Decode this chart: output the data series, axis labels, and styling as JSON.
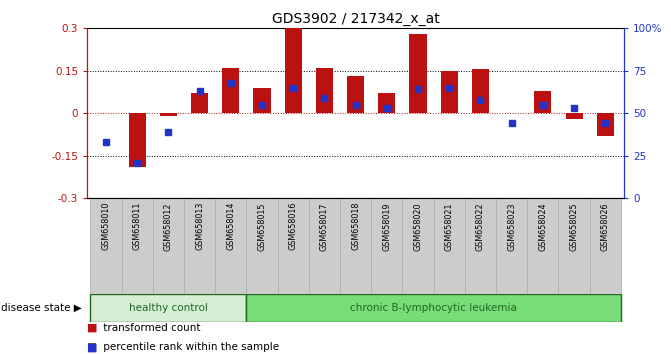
{
  "title": "GDS3902 / 217342_x_at",
  "samples": [
    "GSM658010",
    "GSM658011",
    "GSM658012",
    "GSM658013",
    "GSM658014",
    "GSM658015",
    "GSM658016",
    "GSM658017",
    "GSM658018",
    "GSM658019",
    "GSM658020",
    "GSM658021",
    "GSM658022",
    "GSM658023",
    "GSM658024",
    "GSM658025",
    "GSM658026"
  ],
  "bar_values": [
    0.0,
    -0.19,
    -0.01,
    0.07,
    0.16,
    0.09,
    0.3,
    0.16,
    0.13,
    0.07,
    0.28,
    0.15,
    0.155,
    0.0,
    0.08,
    -0.02,
    -0.08
  ],
  "dot_percentiles": [
    33,
    21,
    39,
    63,
    68,
    55,
    65,
    59,
    55,
    53,
    64,
    65,
    58,
    44,
    55,
    53,
    44
  ],
  "bar_color": "#bb1111",
  "dot_color": "#2233cc",
  "ylim_left": [
    -0.3,
    0.3
  ],
  "ylim_right": [
    0,
    100
  ],
  "yticks_left": [
    -0.3,
    -0.15,
    0.0,
    0.15,
    0.3
  ],
  "ytick_labels_left": [
    "-0.3",
    "-0.15",
    "0",
    "0.15",
    "0.3"
  ],
  "yticks_right": [
    0,
    25,
    50,
    75,
    100
  ],
  "ytick_labels_right": [
    "0",
    "25",
    "50",
    "75",
    "100%"
  ],
  "hlines_dotted": [
    0.15,
    -0.15
  ],
  "hline_red_dotted": 0.0,
  "healthy_count": 5,
  "healthy_label": "healthy control",
  "leukemia_label": "chronic B-lymphocytic leukemia",
  "disease_state_label": "disease state",
  "legend_bar_label": "transformed count",
  "legend_dot_label": "percentile rank within the sample",
  "healthy_color": "#d4efd4",
  "leukemia_color": "#77dd77",
  "group_label_color": "#226622",
  "bar_width": 0.55,
  "figsize": [
    6.71,
    3.54
  ],
  "dpi": 100,
  "box_color": "#cccccc",
  "box_edge_color": "#aaaaaa"
}
